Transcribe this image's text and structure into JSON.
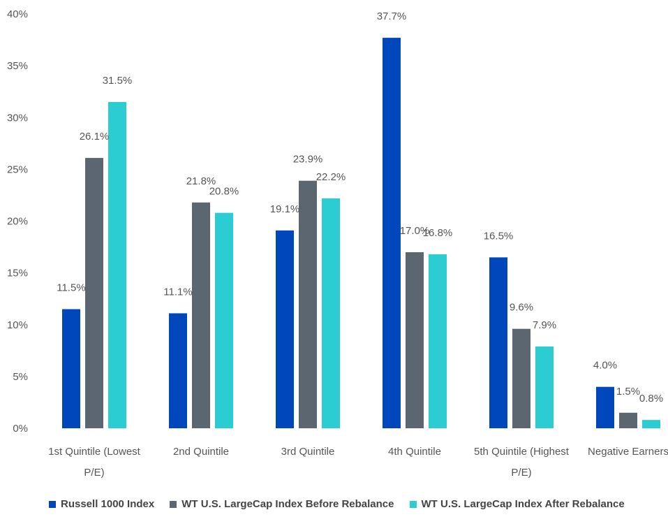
{
  "chart_data": {
    "type": "bar",
    "categories": [
      [
        "1st Quintile (Lowest",
        "P/E)"
      ],
      [
        "2nd Quintile"
      ],
      [
        "3rd Quintile"
      ],
      [
        "4th Quintile"
      ],
      [
        "5th Quintile (Highest",
        "P/E)"
      ],
      [
        "Negative Earners"
      ]
    ],
    "series": [
      {
        "name": "Russell 1000 Index",
        "color": "#0047bb",
        "values": [
          11.5,
          11.1,
          19.1,
          37.7,
          16.5,
          4.0
        ],
        "labels": [
          "11.5%",
          "11.1%",
          "19.1%",
          "37.7%",
          "16.5%",
          "4.0%"
        ]
      },
      {
        "name": "WT U.S. LargeCap Index Before Rebalance",
        "color": "#5b6670",
        "values": [
          26.1,
          21.8,
          23.9,
          17.0,
          9.6,
          1.5
        ],
        "labels": [
          "26.1%",
          "21.8%",
          "23.9%",
          "17.0%",
          "9.6%",
          "1.5%"
        ]
      },
      {
        "name": "WT U.S. LargeCap Index After Rebalance",
        "color": "#2cccd3",
        "values": [
          31.5,
          20.8,
          22.2,
          16.8,
          7.9,
          0.8
        ],
        "labels": [
          "31.5%",
          "20.8%",
          "22.2%",
          "16.8%",
          "7.9%",
          "0.8%"
        ]
      }
    ],
    "yticks": [
      "0%",
      "5%",
      "10%",
      "15%",
      "20%",
      "25%",
      "30%",
      "35%",
      "40%"
    ],
    "ylim": [
      0,
      40
    ],
    "grid": false,
    "legend": "bottom"
  }
}
